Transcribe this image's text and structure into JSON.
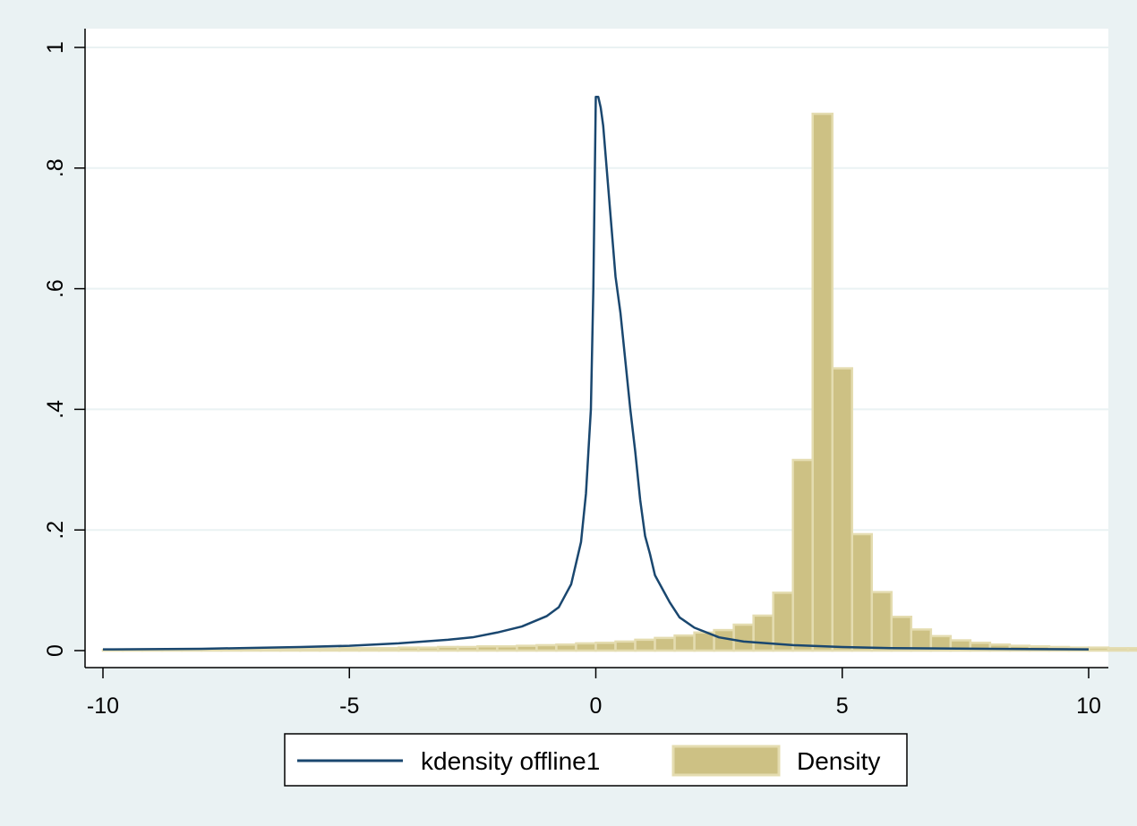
{
  "chart_data": {
    "type": "bar",
    "title": "",
    "xlabel": "",
    "ylabel": "",
    "xlim": [
      -10,
      10
    ],
    "ylim": [
      0,
      1
    ],
    "x_ticks": [
      -10,
      -5,
      0,
      5,
      10
    ],
    "x_tick_labels": [
      "-10",
      "-5",
      "0",
      "5",
      "10"
    ],
    "y_ticks": [
      0,
      0.2,
      0.4,
      0.6,
      0.8,
      1
    ],
    "y_tick_labels": [
      "0",
      ".2",
      ".4",
      ".6",
      ".8",
      "1"
    ],
    "grid": true,
    "legend_position": "bottom",
    "series": [
      {
        "name": "Density",
        "kind": "histogram",
        "bin_width": 0.4,
        "bin_start": -10,
        "color": "#cdc184",
        "edge_color": "#e4dcb0",
        "values": [
          0.001,
          0.001,
          0.001,
          0.002,
          0.002,
          0.002,
          0.002,
          0.002,
          0.003,
          0.003,
          0.003,
          0.003,
          0.004,
          0.004,
          0.004,
          0.005,
          0.005,
          0.006,
          0.006,
          0.007,
          0.007,
          0.008,
          0.009,
          0.01,
          0.012,
          0.013,
          0.015,
          0.018,
          0.021,
          0.025,
          0.03,
          0.034,
          0.043,
          0.058,
          0.096,
          0.316,
          0.89,
          0.468,
          0.193,
          0.097,
          0.056,
          0.035,
          0.024,
          0.017,
          0.013,
          0.01,
          0.008,
          0.007,
          0.006,
          0.005,
          0.005,
          0.004,
          0.004,
          0.004,
          0.003,
          0.003,
          0.003,
          0.003,
          0.002,
          0.002,
          0.002,
          0.002,
          0.002,
          0.002,
          0.002,
          0.001,
          0.001,
          0.001,
          0.001,
          0.001,
          0.001,
          0.001,
          0.001,
          0.001,
          0.001,
          0.001,
          0.001,
          0.001,
          0.001,
          0.001,
          0.001,
          0.001,
          0.001,
          0.001,
          0.001,
          0.001,
          0.001,
          0.001,
          0.001,
          0.001,
          0.001,
          0.001,
          0.001,
          0.001,
          0.001,
          0.001,
          0.001,
          0.001,
          0.001,
          0.001
        ]
      },
      {
        "name": "kdensity offline1",
        "kind": "line",
        "color": "#1a476f",
        "x": [
          -10,
          -8,
          -6,
          -5,
          -4,
          -3,
          -2.5,
          -2,
          -1.5,
          -1,
          -0.75,
          -0.5,
          -0.3,
          -0.2,
          -0.15,
          -0.1,
          -0.05,
          0.0,
          0.05,
          0.1,
          0.15,
          0.2,
          0.3,
          0.4,
          0.5,
          0.6,
          0.7,
          0.8,
          0.9,
          1.0,
          1.1,
          1.2,
          1.3,
          1.4,
          1.5,
          1.7,
          2.0,
          2.5,
          3.0,
          4.0,
          5.0,
          6.0,
          8.0,
          10.0
        ],
        "y": [
          0.002,
          0.003,
          0.006,
          0.008,
          0.012,
          0.018,
          0.022,
          0.03,
          0.04,
          0.057,
          0.072,
          0.11,
          0.18,
          0.26,
          0.33,
          0.4,
          0.6,
          0.918,
          0.918,
          0.9,
          0.87,
          0.82,
          0.72,
          0.62,
          0.56,
          0.48,
          0.4,
          0.33,
          0.25,
          0.19,
          0.16,
          0.125,
          0.11,
          0.095,
          0.08,
          0.055,
          0.038,
          0.022,
          0.015,
          0.009,
          0.006,
          0.004,
          0.003,
          0.002
        ]
      }
    ]
  }
}
